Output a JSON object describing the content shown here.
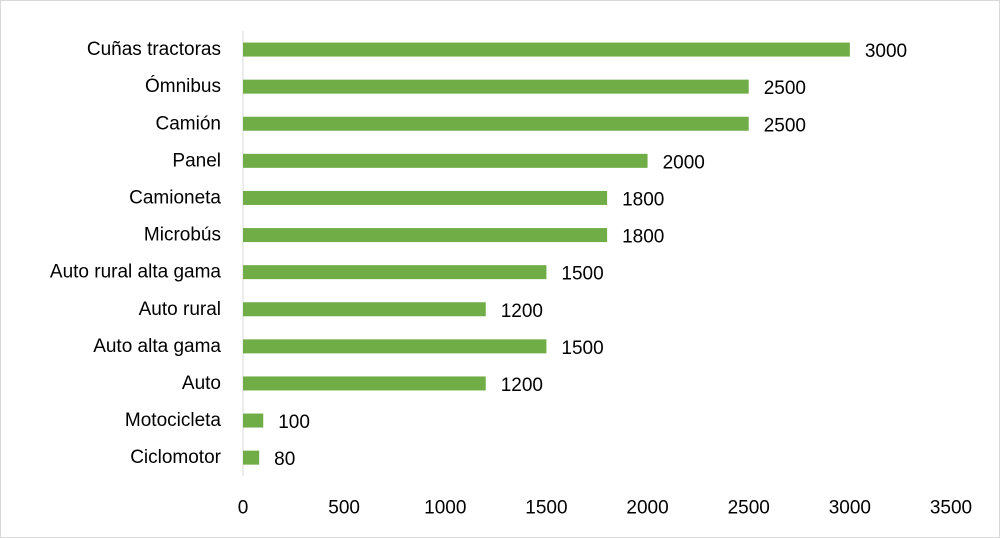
{
  "chart_data": {
    "type": "bar",
    "orientation": "horizontal",
    "title": "",
    "xlabel": "",
    "ylabel": "",
    "categories": [
      "Cuñas tractoras",
      "Ómnibus",
      "Camión",
      "Panel",
      "Camioneta",
      "Microbús",
      "Auto rural alta gama",
      "Auto rural",
      "Auto alta gama",
      "Auto",
      "Motocicleta",
      "Ciclomotor"
    ],
    "values": [
      3000,
      2500,
      2500,
      2000,
      1800,
      1800,
      1500,
      1200,
      1500,
      1200,
      100,
      80
    ],
    "value_labels": [
      "3000",
      "2500",
      "2500",
      "2000",
      "1800",
      "1800",
      "1500",
      "1200",
      "1500",
      "1200",
      "100",
      "80"
    ],
    "xlim": [
      0,
      3500
    ],
    "xticks": [
      0,
      500,
      1000,
      1500,
      2000,
      2500,
      3000,
      3500
    ],
    "xtick_labels": [
      "0",
      "500",
      "1000",
      "1500",
      "2000",
      "2500",
      "3000",
      "3500"
    ],
    "grid": false,
    "legend": "none",
    "bar_color": "#70ad47"
  }
}
